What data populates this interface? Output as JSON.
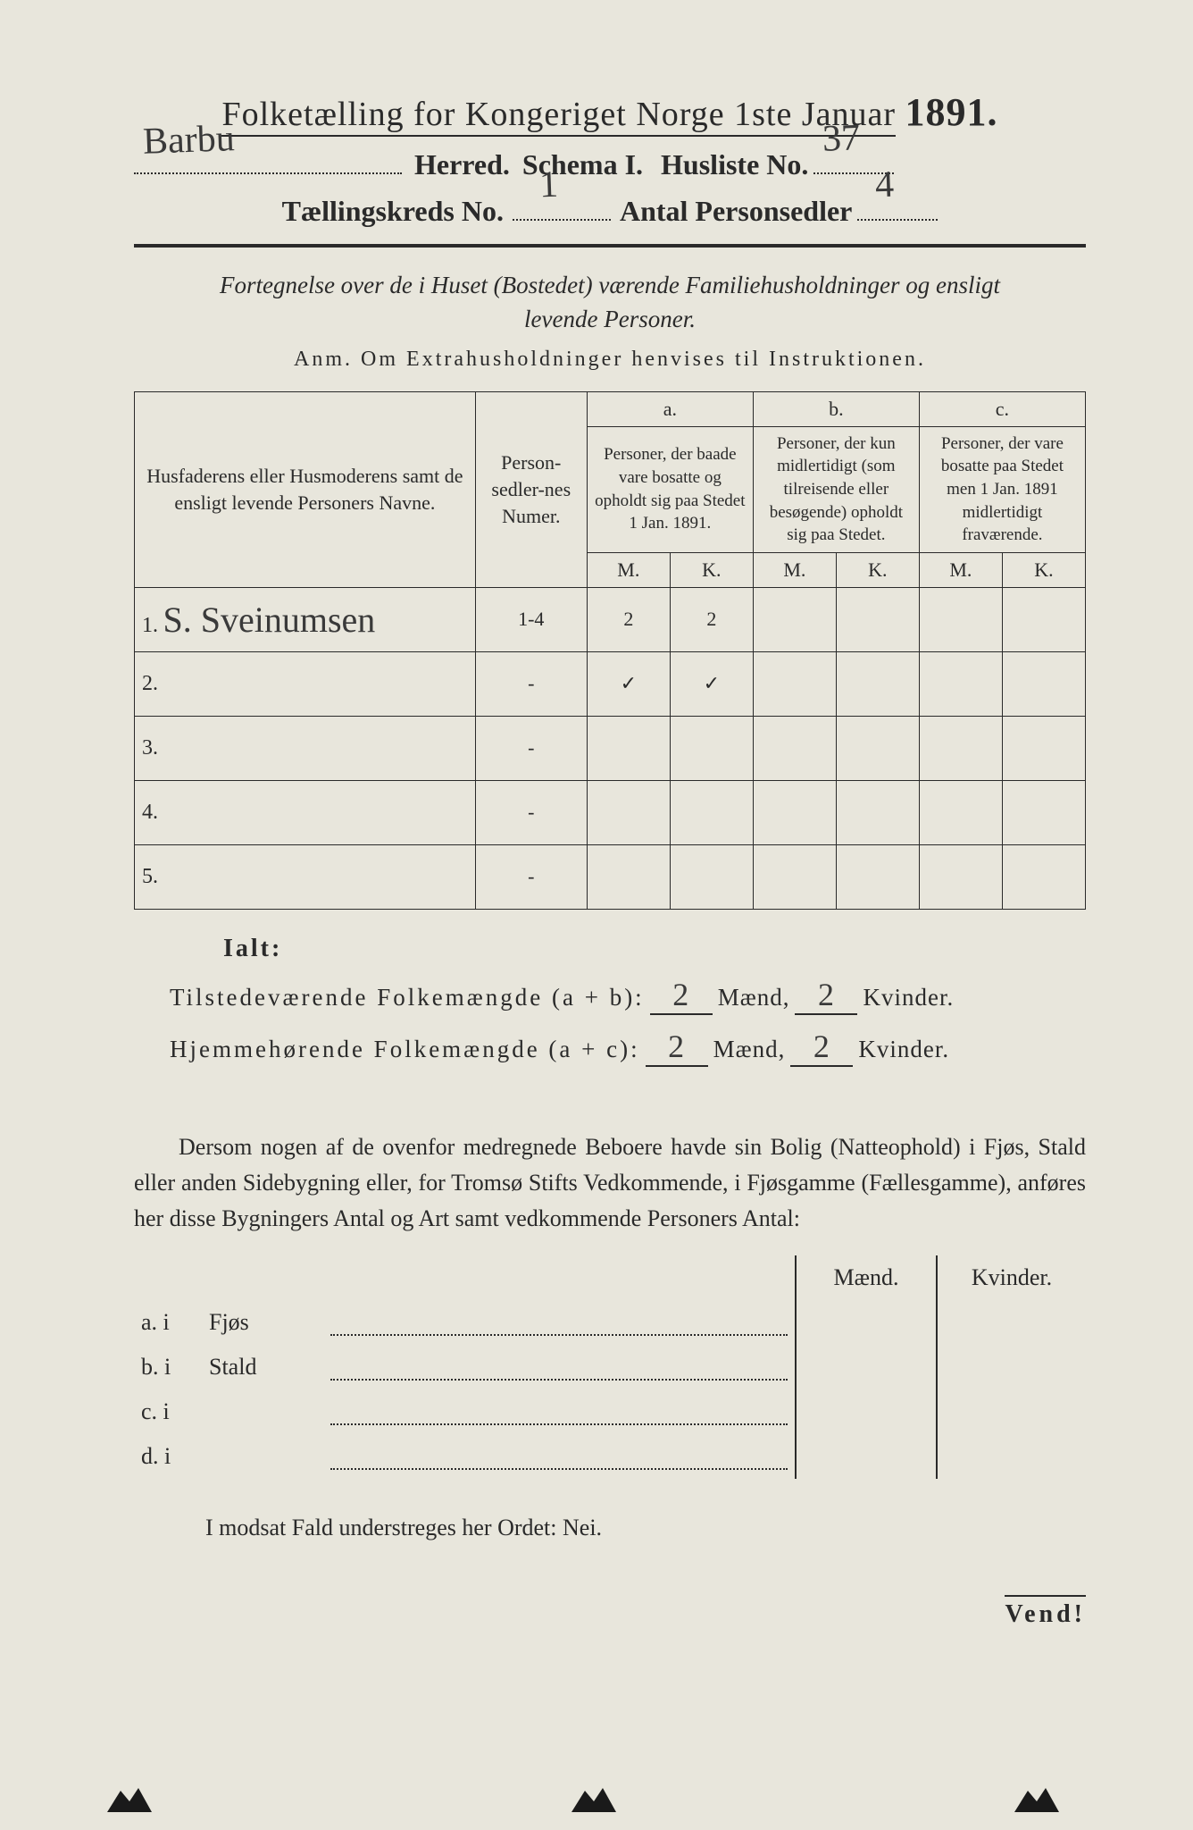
{
  "colors": {
    "paper": "#e8e6dc",
    "ink": "#2a2a2a",
    "handwriting": "#3a3a3a"
  },
  "header": {
    "title_prefix": "Folketælling for Kongeriget Norge 1ste Januar",
    "year": "1891.",
    "herred_value": "Barbu",
    "herred_label": "Herred.",
    "schema_label": "Schema I.",
    "husliste_label": "Husliste No.",
    "husliste_value": "37",
    "kreds_label": "Tællingskreds No.",
    "kreds_value": "1",
    "antal_label": "Antal Personsedler",
    "antal_value": "4"
  },
  "subtitle": {
    "line1": "Fortegnelse over de i Huset (Bostedet) værende Familiehusholdninger og ensligt",
    "line2": "levende Personer."
  },
  "anm": "Anm.  Om Extrahusholdninger henvises til Instruktionen.",
  "table": {
    "head_names": "Husfaderens eller Husmoderens samt de ensligt levende Personers Navne.",
    "head_nr": "Person-sedler-nes Numer.",
    "group_a": "a.",
    "group_b": "b.",
    "group_c": "c.",
    "head_a": "Personer, der baade vare bosatte og opholdt sig paa Stedet 1 Jan. 1891.",
    "head_b": "Personer, der kun midlertidigt (som tilreisende eller besøgende) opholdt sig paa Stedet.",
    "head_c": "Personer, der vare bosatte paa Stedet men 1 Jan. 1891 midlertidigt fraværende.",
    "m": "M.",
    "k": "K.",
    "rows": [
      {
        "n": "1.",
        "name": "S. Sveinumsen",
        "nr": "1-4",
        "am": "2",
        "ak": "2",
        "bm": "",
        "bk": "",
        "cm": "",
        "ck": ""
      },
      {
        "n": "2.",
        "name": "",
        "nr": "-",
        "am": "✓",
        "ak": "✓",
        "bm": "",
        "bk": "",
        "cm": "",
        "ck": ""
      },
      {
        "n": "3.",
        "name": "",
        "nr": "-",
        "am": "",
        "ak": "",
        "bm": "",
        "bk": "",
        "cm": "",
        "ck": ""
      },
      {
        "n": "4.",
        "name": "",
        "nr": "-",
        "am": "",
        "ak": "",
        "bm": "",
        "bk": "",
        "cm": "",
        "ck": ""
      },
      {
        "n": "5.",
        "name": "",
        "nr": "-",
        "am": "",
        "ak": "",
        "bm": "",
        "bk": "",
        "cm": "",
        "ck": ""
      }
    ]
  },
  "totals": {
    "ialt": "Ialt:",
    "line1_label": "Tilstedeværende Folkemængde (a + b):",
    "line1_m": "2",
    "line1_k": "2",
    "line2_label": "Hjemmehørende Folkemængde (a + c):",
    "line2_m": "2",
    "line2_k": "2",
    "maend": "Mænd,",
    "kvinder": "Kvinder."
  },
  "paragraph": "Dersom nogen af de ovenfor medregnede Beboere havde sin Bolig (Natteophold) i Fjøs, Stald eller anden Sidebygning eller, for Tromsø Stifts Vedkommende, i Fjøsgamme (Fællesgamme), anføres her disse Bygningers Antal og Art samt vedkommende Personers Antal:",
  "lower_table": {
    "maend": "Mænd.",
    "kvinder": "Kvinder.",
    "rows": [
      {
        "lbl": "a.  i",
        "txt": "Fjøs"
      },
      {
        "lbl": "b.  i",
        "txt": "Stald"
      },
      {
        "lbl": "c.  i",
        "txt": ""
      },
      {
        "lbl": "d.  i",
        "txt": ""
      }
    ]
  },
  "nei_line": "I modsat Fald understreges her Ordet: Nei.",
  "vend": "Vend!"
}
